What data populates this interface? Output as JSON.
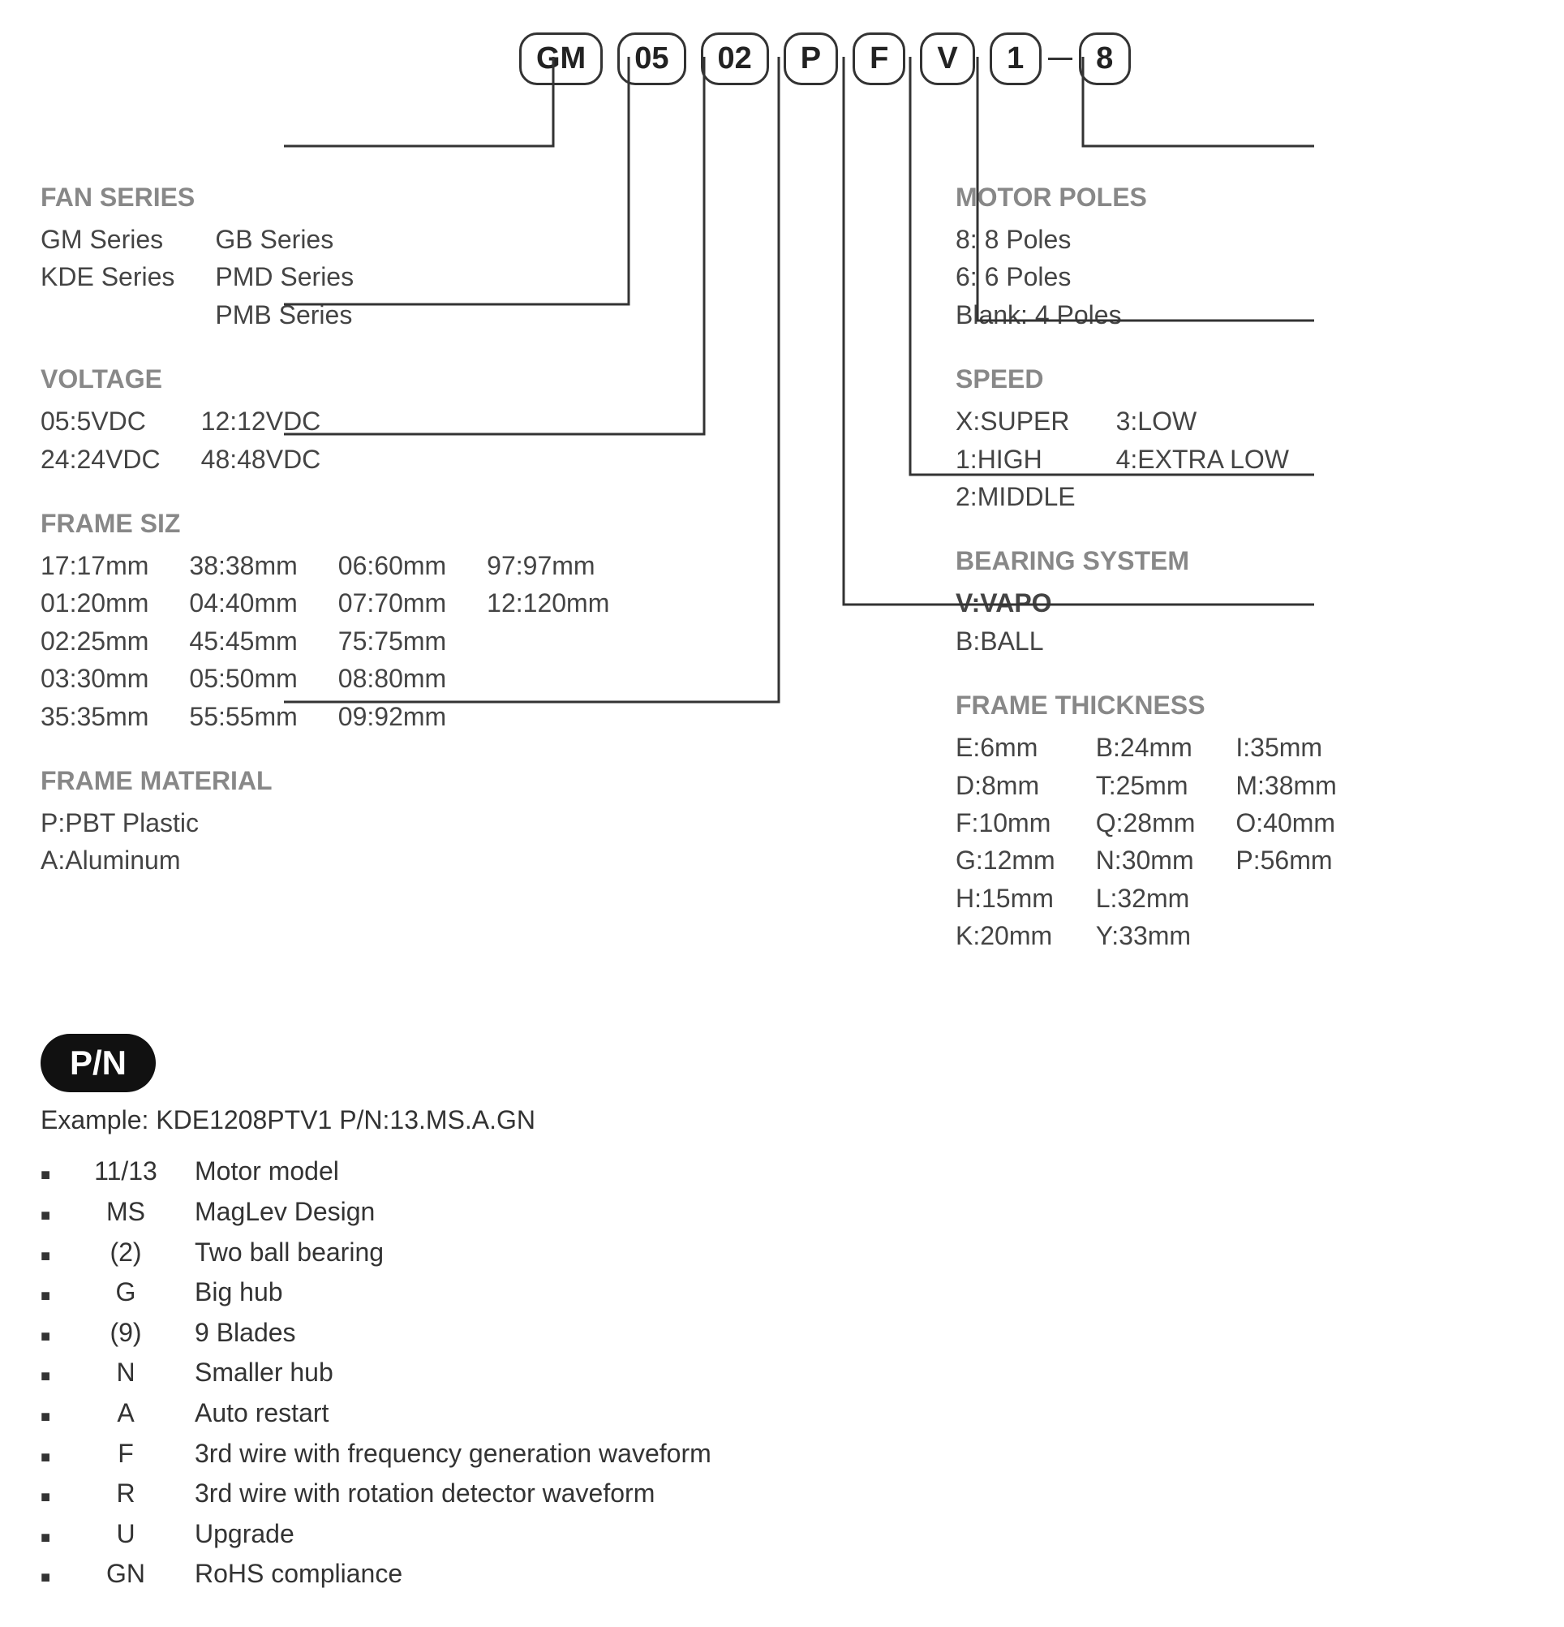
{
  "codes": [
    "GM",
    "05",
    "02",
    "P",
    "F",
    "V",
    "1",
    "8"
  ],
  "left_sections": [
    {
      "title": "FAN SERIES",
      "columns": [
        [
          "GM Series",
          "KDE Series"
        ],
        [
          "GB Series",
          "PMD Series",
          "PMB Series"
        ]
      ]
    },
    {
      "title": "VOLTAGE",
      "columns": [
        [
          "05:5VDC",
          "24:24VDC"
        ],
        [
          "12:12VDC",
          "48:48VDC"
        ]
      ]
    },
    {
      "title": "FRAME SIZ",
      "columns": [
        [
          "17:17mm",
          "01:20mm",
          "02:25mm",
          "03:30mm",
          "35:35mm"
        ],
        [
          "38:38mm",
          "04:40mm",
          "45:45mm",
          "05:50mm",
          "55:55mm"
        ],
        [
          "06:60mm",
          "07:70mm",
          "75:75mm",
          "08:80mm",
          "09:92mm"
        ],
        [
          "97:97mm",
          "12:120mm"
        ]
      ]
    },
    {
      "title": "FRAME MATERIAL",
      "columns": [
        [
          "P:PBT Plastic",
          "A:Aluminum"
        ]
      ]
    }
  ],
  "right_sections": [
    {
      "title": "MOTOR POLES",
      "columns": [
        [
          "8: 8 Poles",
          "6: 6 Poles",
          "Blank: 4 Poles"
        ]
      ]
    },
    {
      "title": "SPEED",
      "columns": [
        [
          "X:SUPER",
          "1:HIGH",
          "2:MIDDLE"
        ],
        [
          "3:LOW",
          "4:EXTRA  LOW"
        ]
      ]
    },
    {
      "title": "BEARING SYSTEM",
      "columns": [
        [
          {
            "text": "V:VAPO",
            "bold": true
          },
          "B:BALL"
        ]
      ]
    },
    {
      "title": "FRAME THICKNESS",
      "columns": [
        [
          "E:6mm",
          "D:8mm",
          "F:10mm",
          "G:12mm",
          "H:15mm",
          "K:20mm"
        ],
        [
          "B:24mm",
          "T:25mm",
          "Q:28mm",
          "N:30mm",
          "L:32mm",
          "Y:33mm"
        ],
        [
          "I:35mm",
          "M:38mm",
          "O:40mm",
          "P:56mm"
        ]
      ]
    }
  ],
  "pn": {
    "badge": "P/N",
    "example": "Example: KDE1208PTV1  P/N:13.MS.A.GN",
    "rows": [
      {
        "code": "11/13",
        "desc": "Motor model"
      },
      {
        "code": "MS",
        "desc": "MagLev Design"
      },
      {
        "code": "(2)",
        "desc": "Two ball bearing"
      },
      {
        "code": "G",
        "desc": "Big hub"
      },
      {
        "code": "(9)",
        "desc": "9 Blades"
      },
      {
        "code": "N",
        "desc": "Smaller hub"
      },
      {
        "code": "A",
        "desc": "Auto restart"
      },
      {
        "code": "F",
        "desc": "3rd wire with frequency generation waveform"
      },
      {
        "code": "R",
        "desc": "3rd wire with rotation detector waveform"
      },
      {
        "code": "U",
        "desc": "Upgrade"
      },
      {
        "code": "GN",
        "desc": "RoHS compliance"
      }
    ]
  },
  "connectors": {
    "stroke": "#333",
    "strokeWidth": 3,
    "left": [
      {
        "boxX": 632,
        "downToY": 135,
        "horizToX": 300,
        "endY": 135
      },
      {
        "boxX": 725,
        "downToY": 330,
        "horizToX": 300,
        "endY": 330
      },
      {
        "boxX": 818,
        "downToY": 490,
        "horizToX": 300,
        "endY": 490
      },
      {
        "boxX": 910,
        "downToY": 820,
        "horizToX": 300,
        "endY": 820
      }
    ],
    "right": [
      {
        "boxX": 990,
        "downToY": 700,
        "horizToX": 1570,
        "endY": 700
      },
      {
        "boxX": 1072,
        "downToY": 540,
        "horizToX": 1570,
        "endY": 540
      },
      {
        "boxX": 1155,
        "downToY": 350,
        "horizToX": 1570,
        "endY": 350
      },
      {
        "boxX": 1285,
        "downToY": 135,
        "horizToX": 1570,
        "endY": 135
      }
    ],
    "boxTopY": 25
  }
}
